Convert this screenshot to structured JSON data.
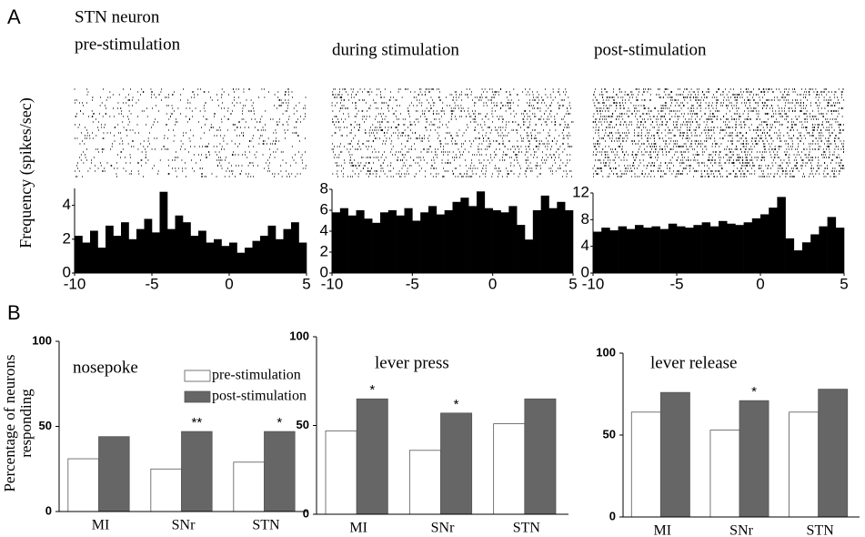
{
  "panel_labels": [
    "A",
    "B"
  ],
  "chart_data": [
    {
      "type": "histogram",
      "subtitle": "STN neuron",
      "title": "pre-stimulation",
      "y_label": "Frequency (spikes/sec)",
      "color": "#000000",
      "bins": [
        -10,
        -9.5,
        -9,
        -8.5,
        -8,
        -7.5,
        -7,
        -6.5,
        -6,
        -5.5,
        -5,
        -4.5,
        -4,
        -3.5,
        -3,
        -2.5,
        -2,
        -1.5,
        -1,
        -0.5,
        0,
        0.5,
        1,
        1.5,
        2,
        2.5,
        3,
        3.5,
        4,
        4.5,
        5
      ],
      "values": [
        2.2,
        1.8,
        2.5,
        1.5,
        2.8,
        2.2,
        3.0,
        2.0,
        2.6,
        3.2,
        2.4,
        4.8,
        2.6,
        3.4,
        3.0,
        2.2,
        2.5,
        1.8,
        2.0,
        1.6,
        1.8,
        1.2,
        1.5,
        1.9,
        2.2,
        2.8,
        2.0,
        2.6,
        3.0,
        1.8
      ],
      "xlim": [
        -10,
        5
      ],
      "xticks": [
        -10,
        -5,
        0,
        5
      ],
      "ylim": [
        0,
        5
      ],
      "yticks": [
        0,
        2,
        4
      ]
    },
    {
      "type": "histogram",
      "title": "during stimulation",
      "color": "#000000",
      "bins": [
        -10,
        -9.5,
        -9,
        -8.5,
        -8,
        -7.5,
        -7,
        -6.5,
        -6,
        -5.5,
        -5,
        -4.5,
        -4,
        -3.5,
        -3,
        -2.5,
        -2,
        -1.5,
        -1,
        -0.5,
        0,
        0.5,
        1,
        1.5,
        2,
        2.5,
        3,
        3.5,
        4,
        4.5,
        5
      ],
      "values": [
        5.8,
        6.2,
        5.5,
        6.0,
        5.2,
        4.8,
        5.8,
        6.0,
        5.5,
        6.2,
        5.0,
        5.8,
        6.4,
        5.6,
        6.0,
        6.8,
        7.2,
        6.4,
        7.8,
        6.2,
        6.0,
        5.8,
        6.4,
        4.6,
        3.2,
        6.0,
        7.4,
        6.2,
        6.8,
        6.0
      ],
      "xlim": [
        -10,
        5
      ],
      "xticks": [
        -10,
        -5,
        0,
        5
      ],
      "ylim": [
        0,
        8
      ],
      "yticks": [
        0,
        2,
        4,
        6,
        8
      ]
    },
    {
      "type": "histogram",
      "title": "post-stimulation",
      "color": "#000000",
      "bins": [
        -10,
        -9.5,
        -9,
        -8.5,
        -8,
        -7.5,
        -7,
        -6.5,
        -6,
        -5.5,
        -5,
        -4.5,
        -4,
        -3.5,
        -3,
        -2.5,
        -2,
        -1.5,
        -1,
        -0.5,
        0,
        0.5,
        1,
        1.5,
        2,
        2.5,
        3,
        3.5,
        4,
        4.5,
        5
      ],
      "values": [
        6.2,
        6.8,
        6.4,
        7.0,
        6.6,
        7.2,
        6.8,
        7.0,
        6.6,
        7.4,
        7.0,
        6.8,
        7.2,
        7.6,
        7.0,
        7.8,
        7.4,
        7.2,
        7.6,
        8.2,
        8.8,
        9.8,
        11.4,
        5.2,
        3.4,
        4.6,
        5.8,
        7.0,
        8.4,
        6.8
      ],
      "xlim": [
        -10,
        5
      ],
      "xticks": [
        -10,
        -5,
        0,
        5
      ],
      "ylim": [
        0,
        12
      ],
      "yticks": [
        0,
        4,
        8,
        12
      ]
    },
    {
      "type": "bar",
      "title": "nosepoke",
      "y_label": [
        "Percentage of neurons",
        "responding"
      ],
      "categories": [
        "MI",
        "SNr",
        "STN"
      ],
      "series": [
        {
          "name": "pre-stimulation",
          "color": "#ffffff",
          "values": [
            31,
            25,
            29
          ]
        },
        {
          "name": "post-stimulation",
          "color": "#666666",
          "values": [
            44,
            47,
            47
          ],
          "annotations": [
            null,
            "**",
            "*"
          ]
        }
      ],
      "ylim": [
        0,
        100
      ],
      "yticks": [
        0,
        50,
        100
      ],
      "legend": "upper right"
    },
    {
      "type": "bar",
      "title": "lever press",
      "categories": [
        "MI",
        "SNr",
        "STN"
      ],
      "series": [
        {
          "color": "#ffffff",
          "values": [
            47,
            36,
            51
          ]
        },
        {
          "color": "#666666",
          "values": [
            65,
            57,
            65
          ],
          "annotations": [
            "*",
            "*",
            null
          ]
        }
      ],
      "ylim": [
        0,
        100
      ],
      "yticks": [
        0,
        50,
        100
      ]
    },
    {
      "type": "bar",
      "title": "lever release",
      "categories": [
        "MI",
        "SNr",
        "STN"
      ],
      "series": [
        {
          "color": "#ffffff",
          "values": [
            64,
            53,
            64
          ]
        },
        {
          "color": "#666666",
          "values": [
            76,
            71,
            78
          ],
          "annotations": [
            null,
            "*",
            null
          ]
        }
      ],
      "ylim": [
        0,
        100
      ],
      "yticks": [
        0,
        50,
        100
      ]
    }
  ]
}
